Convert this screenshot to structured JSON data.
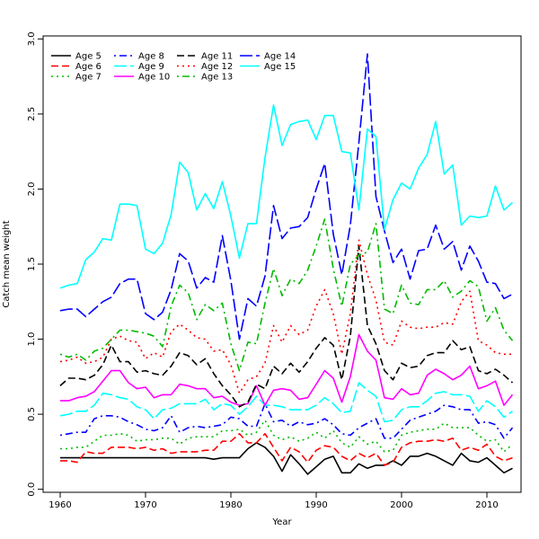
{
  "chart_data": {
    "type": "line",
    "title": "",
    "xlabel": "Year",
    "ylabel": "Catch mean weight",
    "xlim": [
      1958,
      2014
    ],
    "ylim": [
      -0.02,
      3.02
    ],
    "xticks": [
      1960,
      1970,
      1980,
      1990,
      2000,
      2010
    ],
    "yticks": [
      0.0,
      0.5,
      1.0,
      1.5,
      2.0,
      2.5,
      3.0
    ],
    "ytick_labels": [
      "0.0",
      "0.5",
      "1.0",
      "1.5",
      "2.0",
      "2.5",
      "3.0"
    ],
    "grid": false,
    "legend_position": "top-left",
    "legend_columns": 3,
    "x": [
      1960,
      1961,
      1962,
      1963,
      1964,
      1965,
      1966,
      1967,
      1968,
      1969,
      1970,
      1971,
      1972,
      1973,
      1974,
      1975,
      1976,
      1977,
      1978,
      1979,
      1980,
      1981,
      1982,
      1983,
      1984,
      1985,
      1986,
      1987,
      1988,
      1989,
      1990,
      1991,
      1992,
      1993,
      1994,
      1995,
      1996,
      1997,
      1998,
      1999,
      2000,
      2001,
      2002,
      2003,
      2004,
      2005,
      2006,
      2007,
      2008,
      2009,
      2010,
      2011,
      2012,
      2013
    ],
    "series": [
      {
        "name": "Age 5",
        "color": "#000000",
        "dash": "solid",
        "values": [
          0.21,
          0.21,
          0.21,
          0.21,
          0.21,
          0.21,
          0.21,
          0.21,
          0.21,
          0.21,
          0.21,
          0.21,
          0.21,
          0.21,
          0.21,
          0.21,
          0.21,
          0.21,
          0.2,
          0.21,
          0.21,
          0.21,
          0.27,
          0.31,
          0.28,
          0.22,
          0.12,
          0.23,
          0.17,
          0.1,
          0.15,
          0.2,
          0.22,
          0.11,
          0.11,
          0.17,
          0.14,
          0.16,
          0.16,
          0.19,
          0.16,
          0.22,
          0.22,
          0.24,
          0.22,
          0.19,
          0.16,
          0.24,
          0.19,
          0.18,
          0.21,
          0.16,
          0.11,
          0.14
        ]
      },
      {
        "name": "Age 6",
        "color": "#ff0000",
        "dash": "dash",
        "values": [
          0.19,
          0.19,
          0.18,
          0.25,
          0.24,
          0.24,
          0.28,
          0.28,
          0.28,
          0.27,
          0.28,
          0.26,
          0.27,
          0.24,
          0.25,
          0.25,
          0.25,
          0.26,
          0.26,
          0.32,
          0.32,
          0.37,
          0.31,
          0.31,
          0.37,
          0.28,
          0.19,
          0.28,
          0.25,
          0.18,
          0.26,
          0.29,
          0.28,
          0.22,
          0.19,
          0.24,
          0.21,
          0.24,
          0.16,
          0.18,
          0.28,
          0.31,
          0.32,
          0.32,
          0.33,
          0.32,
          0.34,
          0.26,
          0.28,
          0.26,
          0.3,
          0.22,
          0.19,
          0.21
        ]
      },
      {
        "name": "Age 7",
        "color": "#00bb00",
        "dash": "dot",
        "values": [
          0.27,
          0.27,
          0.28,
          0.28,
          0.32,
          0.36,
          0.36,
          0.37,
          0.36,
          0.32,
          0.33,
          0.33,
          0.34,
          0.34,
          0.3,
          0.34,
          0.35,
          0.35,
          0.35,
          0.39,
          0.39,
          0.4,
          0.36,
          0.38,
          0.46,
          0.36,
          0.33,
          0.35,
          0.32,
          0.34,
          0.38,
          0.34,
          0.39,
          0.31,
          0.28,
          0.35,
          0.3,
          0.32,
          0.25,
          0.26,
          0.36,
          0.38,
          0.39,
          0.4,
          0.4,
          0.44,
          0.41,
          0.41,
          0.41,
          0.36,
          0.32,
          0.33,
          0.25,
          0.3
        ]
      },
      {
        "name": "Age 8",
        "color": "#0000ff",
        "dash": "dotdash",
        "values": [
          0.36,
          0.37,
          0.38,
          0.38,
          0.47,
          0.49,
          0.49,
          0.48,
          0.45,
          0.43,
          0.4,
          0.39,
          0.41,
          0.49,
          0.38,
          0.41,
          0.42,
          0.41,
          0.42,
          0.43,
          0.48,
          0.47,
          0.42,
          0.42,
          0.57,
          0.45,
          0.46,
          0.42,
          0.45,
          0.43,
          0.44,
          0.47,
          0.43,
          0.37,
          0.36,
          0.41,
          0.44,
          0.47,
          0.34,
          0.34,
          0.4,
          0.46,
          0.48,
          0.5,
          0.52,
          0.56,
          0.55,
          0.53,
          0.53,
          0.44,
          0.45,
          0.43,
          0.34,
          0.41
        ]
      },
      {
        "name": "Age 9",
        "color": "#00ffff",
        "dash": "longdash",
        "values": [
          0.49,
          0.5,
          0.52,
          0.52,
          0.56,
          0.64,
          0.63,
          0.61,
          0.6,
          0.55,
          0.53,
          0.47,
          0.53,
          0.54,
          0.57,
          0.57,
          0.57,
          0.6,
          0.53,
          0.57,
          0.56,
          0.5,
          0.55,
          0.62,
          0.56,
          0.56,
          0.55,
          0.53,
          0.53,
          0.53,
          0.56,
          0.61,
          0.57,
          0.51,
          0.52,
          0.71,
          0.66,
          0.62,
          0.45,
          0.46,
          0.53,
          0.55,
          0.55,
          0.59,
          0.64,
          0.65,
          0.63,
          0.63,
          0.62,
          0.52,
          0.59,
          0.55,
          0.48,
          0.52
        ]
      },
      {
        "name": "Age 10",
        "color": "#ff00ff",
        "dash": "solid",
        "values": [
          0.59,
          0.59,
          0.61,
          0.62,
          0.65,
          0.72,
          0.79,
          0.79,
          0.71,
          0.67,
          0.68,
          0.61,
          0.63,
          0.63,
          0.7,
          0.69,
          0.67,
          0.67,
          0.61,
          0.62,
          0.58,
          0.56,
          0.57,
          0.69,
          0.56,
          0.66,
          0.67,
          0.66,
          0.6,
          0.61,
          0.7,
          0.79,
          0.74,
          0.58,
          0.75,
          1.03,
          0.92,
          0.86,
          0.61,
          0.6,
          0.67,
          0.63,
          0.64,
          0.76,
          0.8,
          0.77,
          0.73,
          0.76,
          0.82,
          0.67,
          0.69,
          0.72,
          0.56,
          0.63
        ]
      },
      {
        "name": "Age 11",
        "color": "#000000",
        "dash": "dash",
        "values": [
          0.69,
          0.74,
          0.74,
          0.73,
          0.76,
          0.83,
          0.96,
          0.85,
          0.85,
          0.78,
          0.79,
          0.77,
          0.76,
          0.82,
          0.91,
          0.89,
          0.83,
          0.87,
          0.77,
          0.69,
          0.63,
          0.55,
          0.58,
          0.7,
          0.67,
          0.82,
          0.77,
          0.84,
          0.78,
          0.85,
          0.94,
          1.01,
          0.96,
          0.73,
          1.02,
          1.62,
          1.09,
          0.97,
          0.79,
          0.73,
          0.84,
          0.81,
          0.82,
          0.89,
          0.91,
          0.91,
          0.99,
          0.93,
          0.95,
          0.79,
          0.77,
          0.8,
          0.76,
          0.71
        ]
      },
      {
        "name": "Age 12",
        "color": "#ff0000",
        "dash": "dot",
        "values": [
          0.85,
          0.86,
          0.88,
          0.84,
          0.85,
          0.88,
          1.0,
          1.02,
          0.99,
          0.98,
          0.87,
          0.91,
          0.88,
          1.05,
          1.1,
          1.06,
          1.01,
          1.0,
          0.92,
          0.93,
          0.83,
          0.64,
          0.73,
          0.75,
          0.84,
          1.09,
          0.98,
          1.09,
          1.03,
          1.06,
          1.22,
          1.33,
          1.17,
          0.9,
          1.17,
          1.66,
          1.43,
          1.26,
          0.98,
          0.96,
          1.12,
          1.08,
          1.07,
          1.08,
          1.08,
          1.11,
          1.1,
          1.25,
          1.32,
          0.99,
          0.96,
          0.91,
          0.9,
          0.9
        ]
      },
      {
        "name": "Age 13",
        "color": "#00bb00",
        "dash": "dotdash",
        "values": [
          0.9,
          0.88,
          0.9,
          0.86,
          0.92,
          0.94,
          1.0,
          1.06,
          1.06,
          1.05,
          1.04,
          1.02,
          0.95,
          1.22,
          1.36,
          1.31,
          1.13,
          1.23,
          1.19,
          1.24,
          0.97,
          0.79,
          0.98,
          0.97,
          1.24,
          1.47,
          1.29,
          1.4,
          1.37,
          1.46,
          1.62,
          1.8,
          1.47,
          1.22,
          1.5,
          1.56,
          1.58,
          1.77,
          1.2,
          1.17,
          1.36,
          1.24,
          1.23,
          1.33,
          1.33,
          1.39,
          1.28,
          1.32,
          1.39,
          1.35,
          1.12,
          1.21,
          1.06,
          0.99
        ]
      },
      {
        "name": "Age 14",
        "color": "#0000ff",
        "dash": "longdash",
        "values": [
          1.19,
          1.2,
          1.2,
          1.15,
          1.2,
          1.25,
          1.28,
          1.37,
          1.4,
          1.4,
          1.17,
          1.13,
          1.18,
          1.33,
          1.57,
          1.52,
          1.34,
          1.41,
          1.38,
          1.69,
          1.39,
          1.0,
          1.27,
          1.22,
          1.42,
          1.89,
          1.67,
          1.74,
          1.75,
          1.81,
          2.0,
          2.17,
          1.7,
          1.43,
          1.76,
          2.31,
          2.9,
          1.95,
          1.72,
          1.51,
          1.6,
          1.4,
          1.59,
          1.6,
          1.76,
          1.6,
          1.65,
          1.46,
          1.62,
          1.52,
          1.38,
          1.37,
          1.27,
          1.3
        ]
      },
      {
        "name": "Age 15",
        "color": "#00ffff",
        "dash": "solid",
        "values": [
          1.34,
          1.36,
          1.37,
          1.53,
          1.58,
          1.67,
          1.66,
          1.9,
          1.9,
          1.89,
          1.6,
          1.57,
          1.64,
          1.83,
          2.18,
          2.11,
          1.86,
          1.97,
          1.87,
          2.05,
          1.82,
          1.54,
          1.77,
          1.77,
          2.21,
          2.56,
          2.29,
          2.43,
          2.45,
          2.46,
          2.33,
          2.49,
          2.49,
          2.25,
          2.24,
          1.86,
          2.4,
          2.35,
          1.73,
          1.93,
          2.04,
          2.0,
          2.14,
          2.23,
          2.45,
          2.1,
          2.16,
          1.76,
          1.82,
          1.81,
          1.82,
          2.02,
          1.86,
          1.91
        ]
      }
    ]
  }
}
